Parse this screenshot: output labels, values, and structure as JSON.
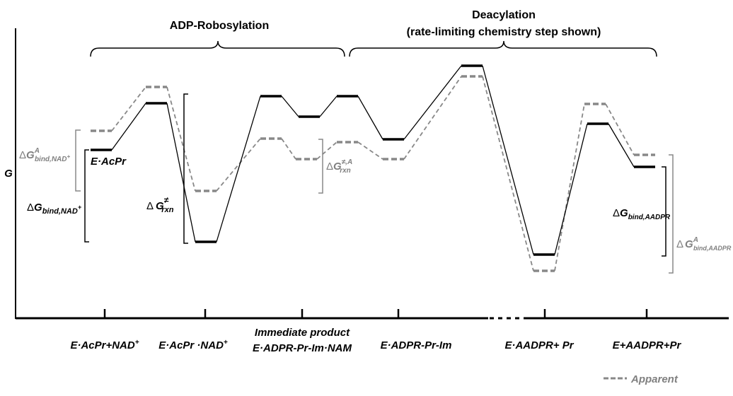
{
  "header": {
    "left_phase": "ADP-Robosylation",
    "right_phase": "Deacylation",
    "right_phase_note": "(rate-limiting chemistry step shown)"
  },
  "axis": {
    "y_label": "G"
  },
  "annotations": {
    "bind_nad_apparent": {
      "delta": "Δ",
      "symbol": "G",
      "sup": "A",
      "sub": "bind,NAD",
      "sub_sup": "+"
    },
    "state_label": "E·AcPr",
    "bind_nad": {
      "delta": "Δ",
      "symbol": "G",
      "sub": "bind,NAD",
      "sub_sup": "+"
    },
    "rxn": {
      "delta": "Δ",
      "symbol": "G",
      "sup": "≠",
      "sub": "rxn"
    },
    "rxn_apparent": {
      "delta": "Δ",
      "symbol": "G",
      "sup": "≠,A",
      "sub": "rxn"
    },
    "bind_aadpr": {
      "delta": "Δ",
      "symbol": "G",
      "sub": "bind,AADPR"
    },
    "bind_aadpr_apparent": {
      "delta": "Δ",
      "symbol": "G",
      "sup": "A",
      "sub": "bind,AADPR"
    }
  },
  "states": [
    {
      "main": "E·AcPr+NAD",
      "sup": "+"
    },
    {
      "main": "E·AcPr ·NAD",
      "sup": "+"
    },
    {
      "line1": "Immediate product",
      "line2": "E·ADPR-Pr-Im·NAM"
    },
    {
      "main": "E·ADPR-Pr-Im"
    },
    {
      "main": "E·AADPR+ Pr"
    },
    {
      "main": "E+AADPR+Pr"
    }
  ],
  "legend": {
    "apparent": "Apparent"
  }
}
